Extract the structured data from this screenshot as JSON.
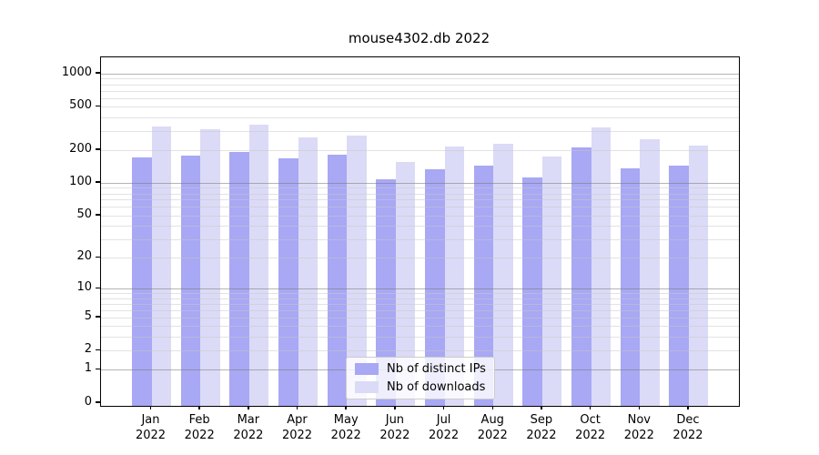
{
  "chart_data": {
    "type": "bar",
    "title": "mouse4302.db 2022",
    "categories": [
      "Jan",
      "Feb",
      "Mar",
      "Apr",
      "May",
      "Jun",
      "Jul",
      "Aug",
      "Sep",
      "Oct",
      "Nov",
      "Dec"
    ],
    "x_year": "2022",
    "series": [
      {
        "name": "Nb of distinct IPs",
        "values": [
          172,
          178,
          194,
          169,
          181,
          108,
          134,
          143,
          112,
          213,
          136,
          144
        ]
      },
      {
        "name": "Nb of downloads",
        "values": [
          327,
          311,
          344,
          262,
          274,
          155,
          217,
          230,
          175,
          321,
          252,
          221
        ]
      }
    ],
    "y_scale": "log10(value+1)",
    "y_ticks": [
      1000,
      500,
      200,
      100,
      50,
      20,
      10,
      5,
      2,
      1,
      0
    ],
    "ylim": [
      0,
      1400
    ],
    "grid": "both-horizontal",
    "legend_position": "lower-center"
  },
  "colors": {
    "ips_bar": "#a8a8f4",
    "downloads_bar": "#dbdbf7",
    "grid_major": "rgba(120,120,120,0.55)",
    "grid_minor": "rgba(200,200,200,0.5)",
    "spine": "#000000",
    "legend_border": "#cccccc"
  }
}
